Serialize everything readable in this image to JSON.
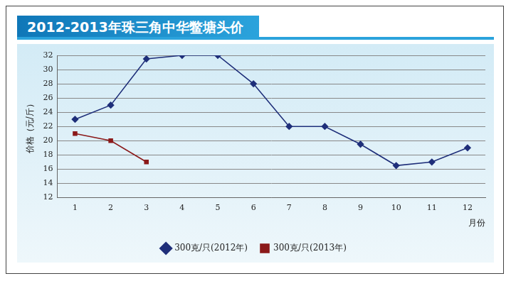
{
  "chart_data": {
    "type": "line",
    "title": "2012-2013年珠三角中华鳖塘头价",
    "x_label": "月份",
    "y_label": "价格（元/斤）",
    "categories": [
      "1",
      "2",
      "3",
      "4",
      "5",
      "6",
      "7",
      "8",
      "9",
      "10",
      "11",
      "12"
    ],
    "series": [
      {
        "name": "300克/只(2012年)",
        "color": "#1f2f7a",
        "marker": "diamond",
        "values": [
          23,
          25,
          31.5,
          32,
          32,
          28,
          22,
          22,
          19.5,
          16.5,
          17,
          19
        ]
      },
      {
        "name": "300克/只(2013年)",
        "color": "#8b1a1a",
        "marker": "square",
        "values": [
          21,
          20,
          17,
          null,
          null,
          null,
          null,
          null,
          null,
          null,
          null,
          null
        ]
      }
    ],
    "ylim": [
      12,
      32
    ],
    "yticks": [
      12,
      14,
      16,
      18,
      20,
      22,
      24,
      26,
      28,
      30,
      32
    ],
    "grid": true,
    "legend": "bottom"
  }
}
